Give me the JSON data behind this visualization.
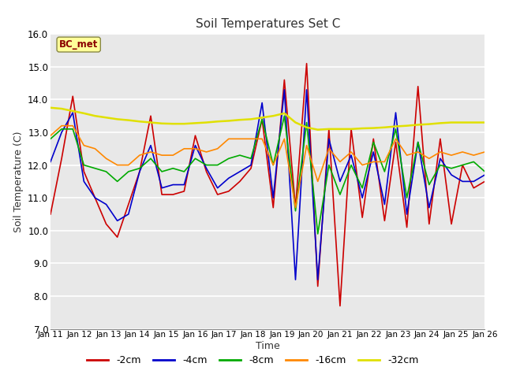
{
  "title": "Soil Temperatures Set C",
  "xlabel": "Time",
  "ylabel": "Soil Temperature (C)",
  "ylim": [
    7.0,
    16.0
  ],
  "yticks": [
    7.0,
    8.0,
    9.0,
    10.0,
    11.0,
    12.0,
    13.0,
    14.0,
    15.0,
    16.0
  ],
  "xtick_labels": [
    "Jan 11",
    "Jan 12",
    "Jan 13",
    "Jan 14",
    "Jan 15",
    "Jan 16",
    "Jan 17",
    "Jan 18",
    "Jan 19",
    "Jan 20",
    "Jan 21",
    "Jan 22",
    "Jan 23",
    "Jan 24",
    "Jan 25",
    "Jan 26"
  ],
  "annotation_text": "BC_met",
  "plot_bg_color": "#e8e8e8",
  "series": {
    "-2cm": {
      "color": "#cc0000",
      "lw": 1.2,
      "y": [
        10.5,
        12.2,
        14.1,
        11.8,
        11.0,
        10.2,
        9.8,
        10.8,
        11.8,
        13.5,
        11.1,
        11.1,
        11.2,
        12.9,
        11.8,
        11.1,
        11.2,
        11.5,
        11.9,
        13.4,
        10.7,
        14.6,
        10.7,
        15.1,
        8.3,
        13.1,
        7.7,
        13.1,
        10.4,
        12.8,
        10.3,
        12.7,
        10.1,
        14.4,
        10.2,
        12.8,
        10.2,
        12.0,
        11.3,
        11.5
      ]
    },
    "-4cm": {
      "color": "#0000cc",
      "lw": 1.2,
      "y": [
        12.1,
        13.0,
        13.6,
        11.5,
        11.0,
        10.8,
        10.3,
        10.5,
        11.8,
        12.6,
        11.3,
        11.4,
        11.4,
        12.6,
        11.9,
        11.3,
        11.6,
        11.8,
        12.0,
        13.9,
        11.0,
        14.3,
        8.5,
        14.3,
        8.5,
        12.8,
        11.5,
        12.3,
        11.0,
        12.4,
        10.8,
        13.6,
        10.5,
        12.7,
        10.7,
        12.2,
        11.7,
        11.5,
        11.5,
        11.7
      ]
    },
    "-8cm": {
      "color": "#00aa00",
      "lw": 1.2,
      "y": [
        12.8,
        13.1,
        13.1,
        12.0,
        11.9,
        11.8,
        11.5,
        11.8,
        11.9,
        12.2,
        11.8,
        11.9,
        11.8,
        12.2,
        12.0,
        12.0,
        12.2,
        12.3,
        12.2,
        13.4,
        12.0,
        13.5,
        10.6,
        13.3,
        9.9,
        12.0,
        11.1,
        12.0,
        11.3,
        12.7,
        11.8,
        13.1,
        11.0,
        12.7,
        11.4,
        12.0,
        11.9,
        12.0,
        12.1,
        11.8
      ]
    },
    "-16cm": {
      "color": "#ff8800",
      "lw": 1.2,
      "y": [
        12.9,
        13.2,
        13.2,
        12.6,
        12.5,
        12.2,
        12.0,
        12.0,
        12.3,
        12.4,
        12.3,
        12.3,
        12.5,
        12.5,
        12.4,
        12.5,
        12.8,
        12.8,
        12.8,
        12.8,
        12.0,
        12.8,
        10.7,
        12.6,
        11.5,
        12.5,
        12.1,
        12.4,
        12.0,
        12.1,
        12.1,
        12.8,
        12.3,
        12.4,
        12.2,
        12.4,
        12.3,
        12.4,
        12.3,
        12.4
      ]
    },
    "-32cm": {
      "color": "#e0e000",
      "lw": 1.8,
      "y": [
        13.75,
        13.72,
        13.65,
        13.58,
        13.5,
        13.45,
        13.4,
        13.37,
        13.33,
        13.3,
        13.27,
        13.26,
        13.26,
        13.28,
        13.3,
        13.33,
        13.35,
        13.38,
        13.4,
        13.45,
        13.5,
        13.58,
        13.3,
        13.15,
        13.08,
        13.1,
        13.1,
        13.1,
        13.12,
        13.13,
        13.15,
        13.18,
        13.2,
        13.23,
        13.25,
        13.28,
        13.3,
        13.3,
        13.3,
        13.3
      ]
    }
  }
}
